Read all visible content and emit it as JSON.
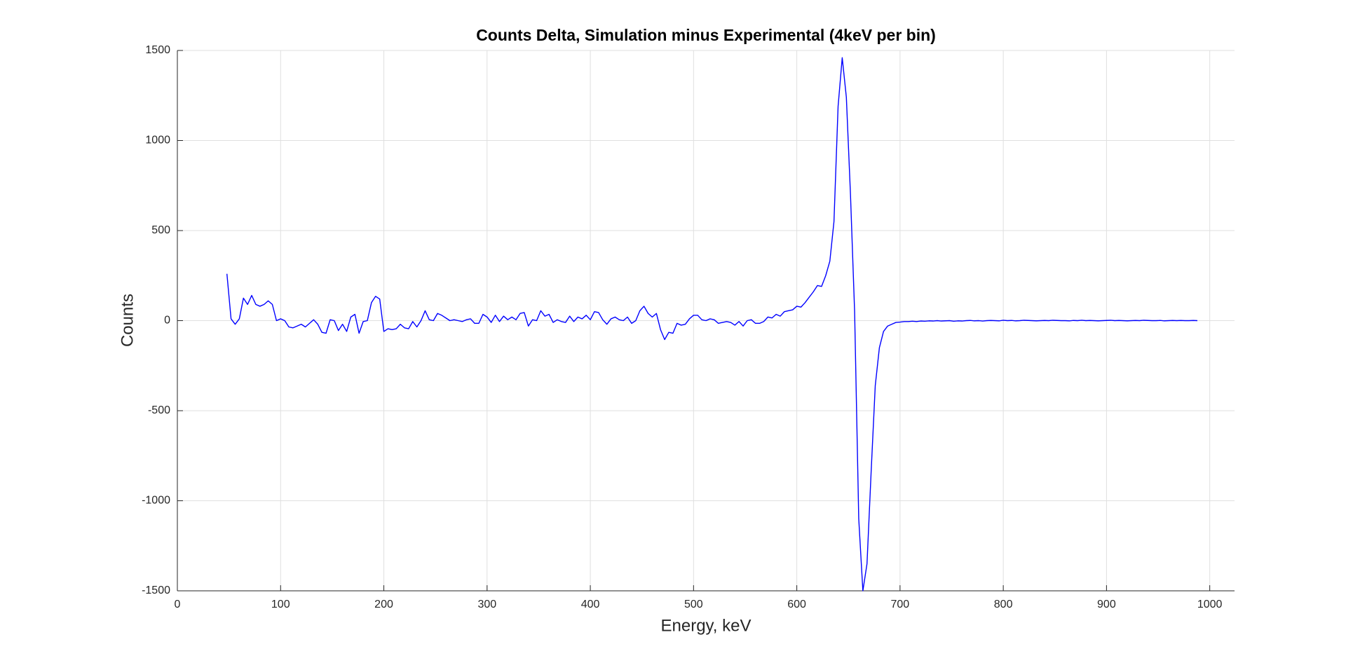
{
  "chart_data": {
    "type": "line",
    "title": "Counts Delta, Simulation minus Experimental (4keV per bin)",
    "x_label": "Energy, keV",
    "y_label": "Counts",
    "color": "#0000ff",
    "grid": true,
    "xlim": [
      0,
      1024
    ],
    "ylim": [
      -1500,
      1500
    ],
    "xticks": [
      0,
      100,
      200,
      300,
      400,
      500,
      600,
      700,
      800,
      900,
      1000
    ],
    "yticks": [
      -1500,
      -1000,
      -500,
      0,
      500,
      1000,
      1500
    ],
    "x": [
      48,
      52,
      56,
      60,
      64,
      68,
      72,
      76,
      80,
      84,
      88,
      92,
      96,
      100,
      104,
      108,
      112,
      116,
      120,
      124,
      128,
      132,
      136,
      140,
      144,
      148,
      152,
      156,
      160,
      164,
      168,
      172,
      176,
      180,
      184,
      188,
      192,
      196,
      200,
      204,
      208,
      212,
      216,
      220,
      224,
      228,
      232,
      236,
      240,
      244,
      248,
      252,
      256,
      260,
      264,
      268,
      272,
      276,
      280,
      284,
      288,
      292,
      296,
      300,
      304,
      308,
      312,
      316,
      320,
      324,
      328,
      332,
      336,
      340,
      344,
      348,
      352,
      356,
      360,
      364,
      368,
      372,
      376,
      380,
      384,
      388,
      392,
      396,
      400,
      404,
      408,
      412,
      416,
      420,
      424,
      428,
      432,
      436,
      440,
      444,
      448,
      452,
      456,
      460,
      464,
      468,
      472,
      476,
      480,
      484,
      488,
      492,
      496,
      500,
      504,
      508,
      512,
      516,
      520,
      524,
      528,
      532,
      536,
      540,
      544,
      548,
      552,
      556,
      560,
      564,
      568,
      572,
      576,
      580,
      584,
      588,
      592,
      596,
      600,
      604,
      608,
      612,
      616,
      620,
      624,
      628,
      632,
      636,
      640,
      644,
      648,
      652,
      656,
      660,
      664,
      668,
      672,
      676,
      680,
      684,
      688,
      692,
      696,
      700,
      704,
      708,
      712,
      716,
      720,
      724,
      728,
      732,
      736,
      740,
      744,
      748,
      752,
      756,
      760,
      764,
      768,
      772,
      776,
      780,
      784,
      788,
      792,
      796,
      800,
      804,
      808,
      812,
      816,
      820,
      824,
      828,
      832,
      836,
      840,
      844,
      848,
      852,
      856,
      860,
      864,
      868,
      872,
      876,
      880,
      884,
      888,
      892,
      896,
      900,
      904,
      908,
      912,
      916,
      920,
      924,
      928,
      932,
      936,
      940,
      944,
      948,
      952,
      956,
      960,
      964,
      968,
      972,
      976,
      980,
      984,
      988
    ],
    "values": [
      260,
      10,
      -20,
      10,
      125,
      90,
      140,
      90,
      80,
      90,
      110,
      90,
      0,
      10,
      0,
      -35,
      -40,
      -30,
      -20,
      -35,
      -15,
      5,
      -20,
      -65,
      -70,
      5,
      0,
      -55,
      -20,
      -60,
      20,
      35,
      -70,
      -5,
      0,
      100,
      135,
      120,
      -60,
      -45,
      -50,
      -45,
      -20,
      -40,
      -45,
      -5,
      -35,
      0,
      55,
      5,
      0,
      40,
      30,
      15,
      0,
      5,
      0,
      -5,
      5,
      10,
      -15,
      -15,
      35,
      20,
      -10,
      30,
      -5,
      25,
      5,
      20,
      5,
      40,
      45,
      -30,
      5,
      0,
      55,
      25,
      35,
      -10,
      5,
      -5,
      -10,
      25,
      -5,
      20,
      10,
      30,
      5,
      50,
      45,
      5,
      -20,
      10,
      20,
      5,
      0,
      20,
      -15,
      0,
      55,
      80,
      40,
      20,
      40,
      -50,
      -105,
      -65,
      -70,
      -15,
      -25,
      -20,
      10,
      30,
      30,
      5,
      0,
      10,
      5,
      -15,
      -10,
      -5,
      -10,
      -25,
      -5,
      -30,
      0,
      5,
      -15,
      -15,
      -5,
      20,
      15,
      35,
      25,
      50,
      55,
      60,
      80,
      75,
      100,
      130,
      160,
      195,
      190,
      250,
      330,
      550,
      1190,
      1460,
      1240,
      700,
      50,
      -1100,
      -1500,
      -1350,
      -840,
      -360,
      -150,
      -60,
      -30,
      -20,
      -10,
      -8,
      -5,
      -5,
      -3,
      -5,
      -2,
      -3,
      -1,
      -2,
      0,
      -2,
      -1,
      0,
      -3,
      -1,
      -2,
      0,
      1,
      -1,
      0,
      -2,
      0,
      1,
      0,
      -1,
      2,
      0,
      1,
      -1,
      0,
      2,
      1,
      0,
      -1,
      0,
      1,
      0,
      2,
      1,
      0,
      0,
      -1,
      1,
      0,
      2,
      0,
      1,
      0,
      -1,
      0,
      1,
      2,
      0,
      1,
      0,
      -1,
      0,
      1,
      0,
      2,
      1,
      0,
      0,
      1,
      -1,
      0,
      1,
      0,
      1,
      0,
      0,
      1,
      0
    ]
  }
}
